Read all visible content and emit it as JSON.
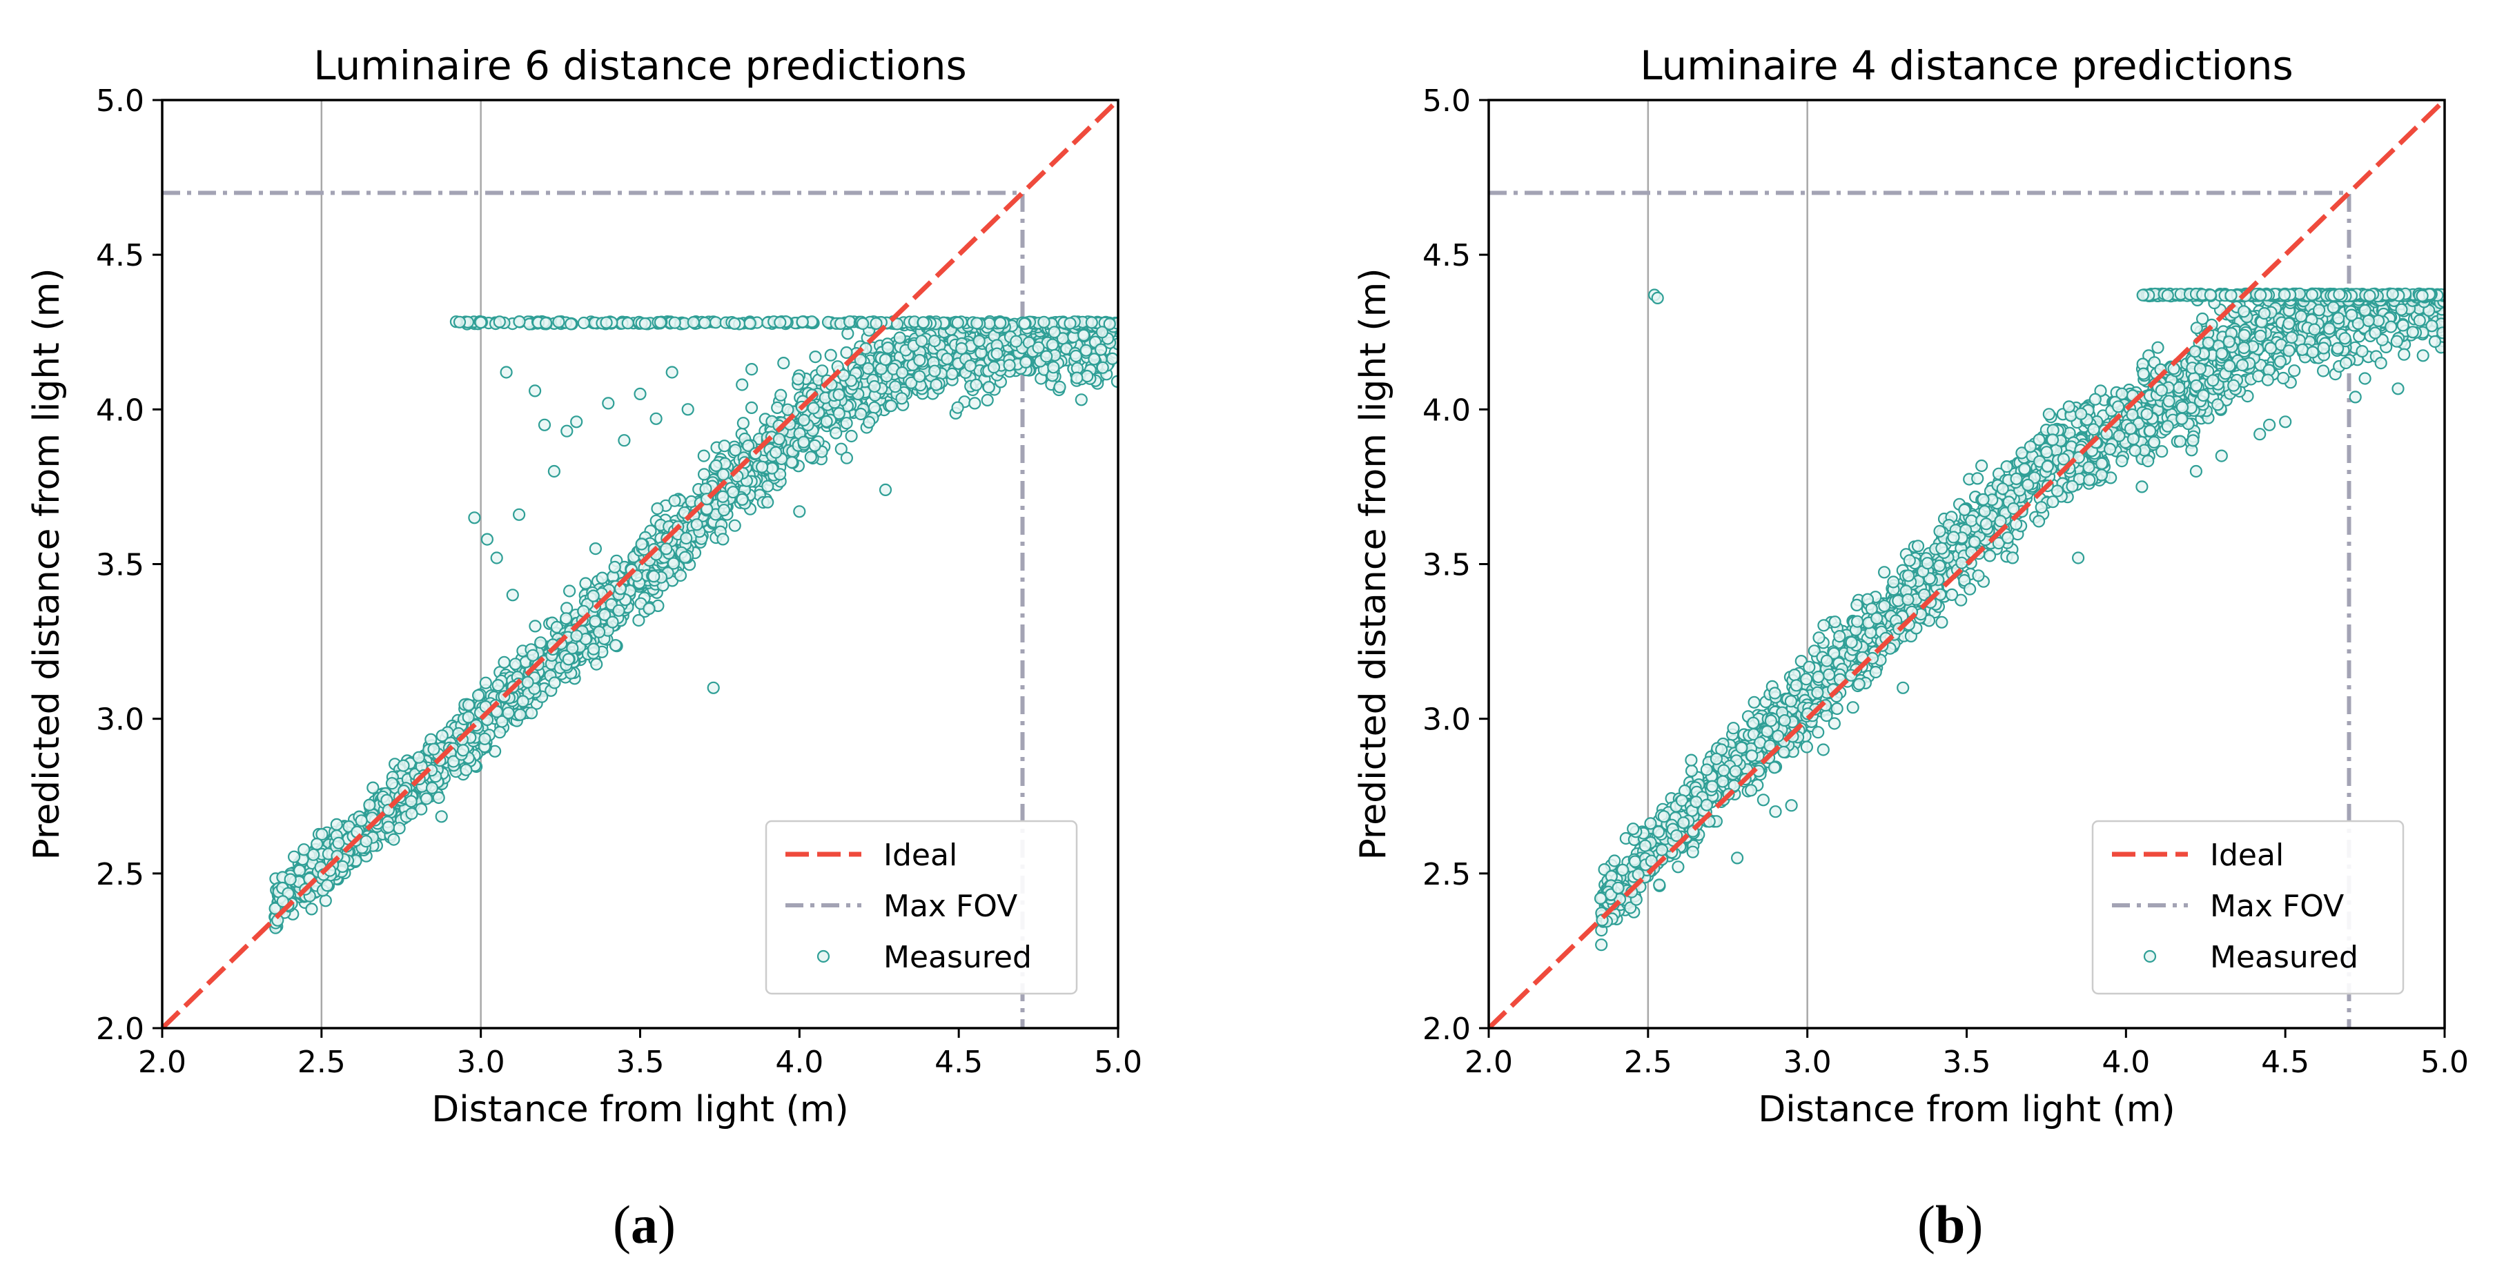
{
  "colors": {
    "ideal": "#ef4a3c",
    "fov": "#a3a3b4",
    "marker_edge": "#2f9f96",
    "marker_fill": "#e8f6f4",
    "grid": "#a8a8a8",
    "axis": "#000000"
  },
  "chart_data": [
    {
      "type": "scatter",
      "title": "Luminaire 6 distance predictions",
      "xlabel": "Distance from light (m)",
      "ylabel": "Predicted distance from light (m)",
      "xlim": [
        2.0,
        5.0
      ],
      "ylim": [
        2.0,
        5.0
      ],
      "xticks": [
        "2.0",
        "2.5",
        "3.0",
        "3.5",
        "4.0",
        "4.5",
        "5.0"
      ],
      "yticks": [
        "2.0",
        "2.5",
        "3.0",
        "3.5",
        "4.0",
        "4.5",
        "5.0"
      ],
      "vertical_gridlines": [
        2.5,
        3.0
      ],
      "legend": {
        "position": "lower-right",
        "entries": [
          "Ideal",
          "Max FOV",
          "Measured"
        ]
      },
      "series": [
        {
          "name": "Ideal",
          "kind": "line",
          "style": "dashed",
          "x": [
            2.0,
            5.0
          ],
          "y": [
            2.0,
            5.0
          ]
        },
        {
          "name": "Max FOV",
          "kind": "line",
          "style": "dash-dot",
          "x": [
            2.0,
            4.7,
            4.7
          ],
          "y": [
            4.7,
            4.7,
            2.0
          ]
        },
        {
          "name": "Measured",
          "kind": "scatter",
          "model": {
            "x_range": [
              2.35,
              5.0
            ],
            "saturation": 4.28,
            "saturation_x_range": [
              2.92,
              5.0
            ],
            "trend": [
              [
                2.35,
                2.4
              ],
              [
                2.5,
                2.52
              ],
              [
                2.75,
                2.75
              ],
              [
                3.0,
                2.98
              ],
              [
                3.25,
                3.22
              ],
              [
                3.5,
                3.46
              ],
              [
                3.75,
                3.72
              ],
              [
                4.0,
                3.95
              ],
              [
                4.25,
                4.12
              ],
              [
                4.5,
                4.2
              ],
              [
                5.0,
                4.26
              ]
            ],
            "spread": 0.06,
            "outliers": [
              [
                2.98,
                3.65
              ],
              [
                3.02,
                3.58
              ],
              [
                3.05,
                3.52
              ],
              [
                3.08,
                4.12
              ],
              [
                3.1,
                3.4
              ],
              [
                3.12,
                3.66
              ],
              [
                3.17,
                4.06
              ],
              [
                3.2,
                3.95
              ],
              [
                3.23,
                3.8
              ],
              [
                3.27,
                3.93
              ],
              [
                3.3,
                3.96
              ],
              [
                3.36,
                3.55
              ],
              [
                3.4,
                4.02
              ],
              [
                3.45,
                3.9
              ],
              [
                3.5,
                4.05
              ],
              [
                3.55,
                3.97
              ],
              [
                3.6,
                4.12
              ],
              [
                3.65,
                4.0
              ],
              [
                3.7,
                3.85
              ],
              [
                3.73,
                3.1
              ],
              [
                3.82,
                4.08
              ],
              [
                3.85,
                4.13
              ],
              [
                3.9,
                3.7
              ],
              [
                3.95,
                4.15
              ],
              [
                4.0,
                3.67
              ],
              [
                4.05,
                4.17
              ],
              [
                4.1,
                4.08
              ],
              [
                4.27,
                3.74
              ],
              [
                4.55,
                4.02
              ],
              [
                4.59,
                4.03
              ],
              [
                4.62,
                4.18
              ],
              [
                4.68,
                4.22
              ],
              [
                4.75,
                4.2
              ],
              [
                4.8,
                4.25
              ],
              [
                4.95,
                4.25
              ]
            ]
          }
        }
      ]
    },
    {
      "type": "scatter",
      "title": "Luminaire 4 distance predictions",
      "xlabel": "Distance from light (m)",
      "ylabel": "Predicted distance from light (m)",
      "xlim": [
        2.0,
        5.0
      ],
      "ylim": [
        2.0,
        5.0
      ],
      "xticks": [
        "2.0",
        "2.5",
        "3.0",
        "3.5",
        "4.0",
        "4.5",
        "5.0"
      ],
      "yticks": [
        "2.0",
        "2.5",
        "3.0",
        "3.5",
        "4.0",
        "4.5",
        "5.0"
      ],
      "vertical_gridlines": [
        2.5,
        3.0
      ],
      "legend": {
        "position": "lower-right",
        "entries": [
          "Ideal",
          "Max FOV",
          "Measured"
        ]
      },
      "series": [
        {
          "name": "Ideal",
          "kind": "line",
          "style": "dashed",
          "x": [
            2.0,
            5.0
          ],
          "y": [
            2.0,
            5.0
          ]
        },
        {
          "name": "Max FOV",
          "kind": "line",
          "style": "dash-dot",
          "x": [
            2.0,
            4.7,
            4.7
          ],
          "y": [
            4.7,
            4.7,
            2.0
          ]
        },
        {
          "name": "Measured",
          "kind": "scatter",
          "model": {
            "x_range": [
              2.35,
              5.0
            ],
            "saturation": 4.37,
            "saturation_x_range": [
              4.05,
              5.0
            ],
            "trend": [
              [
                2.35,
                2.38
              ],
              [
                2.5,
                2.55
              ],
              [
                2.75,
                2.82
              ],
              [
                3.0,
                3.07
              ],
              [
                3.25,
                3.32
              ],
              [
                3.5,
                3.58
              ],
              [
                3.75,
                3.82
              ],
              [
                4.0,
                3.95
              ],
              [
                4.25,
                4.12
              ],
              [
                4.5,
                4.3
              ],
              [
                4.7,
                4.34
              ],
              [
                5.0,
                4.36
              ]
            ],
            "spread": 0.07,
            "outliers": [
              [
                2.52,
                4.37
              ],
              [
                2.53,
                4.36
              ],
              [
                2.78,
                2.55
              ],
              [
                2.9,
                2.7
              ],
              [
                2.95,
                2.72
              ],
              [
                3.05,
                2.9
              ],
              [
                3.3,
                3.1
              ],
              [
                3.85,
                3.52
              ],
              [
                4.05,
                3.75
              ],
              [
                4.1,
                4.2
              ],
              [
                4.22,
                3.8
              ],
              [
                4.3,
                3.85
              ],
              [
                4.42,
                3.92
              ],
              [
                4.45,
                3.95
              ],
              [
                4.5,
                3.96
              ],
              [
                4.72,
                4.04
              ],
              [
                4.75,
                4.1
              ],
              [
                4.8,
                4.15
              ],
              [
                4.85,
                4.22
              ],
              [
                4.9,
                4.25
              ],
              [
                4.96,
                4.27
              ]
            ]
          }
        }
      ]
    }
  ],
  "panel_labels": [
    "a",
    "b"
  ]
}
